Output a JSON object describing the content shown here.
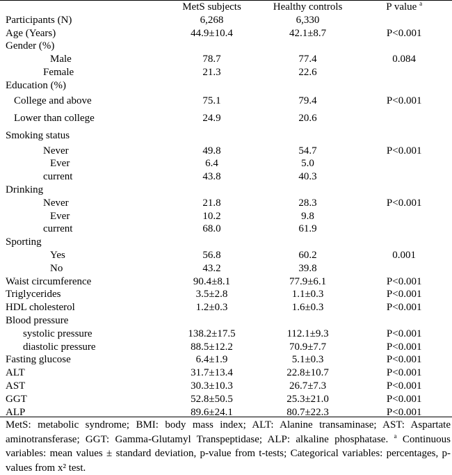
{
  "header": {
    "col1": "MetS subjects",
    "col2": "Healthy controls",
    "col3": "P value",
    "col3_sup": "a"
  },
  "rows": [
    {
      "label": "Participants (N)",
      "mets": "6,268",
      "ctrl": "6,330",
      "p": ""
    },
    {
      "label": "Age (Years)",
      "mets": "44.9±10.4",
      "ctrl": "42.1±8.7",
      "p": "P<0.001"
    },
    {
      "label": "Gender (%)",
      "mets": "",
      "ctrl": "",
      "p": ""
    },
    {
      "label": "Male",
      "mets": "78.7",
      "ctrl": "77.4",
      "p": "0.084"
    },
    {
      "label": "Female",
      "mets": "21.3",
      "ctrl": "22.6",
      "p": ""
    },
    {
      "label": "Education  (%)",
      "mets": "",
      "ctrl": "",
      "p": ""
    },
    {
      "label": "College and above",
      "mets": "75.1",
      "ctrl": "79.4",
      "p": "P<0.001"
    },
    {
      "label": "Lower than college",
      "mets": "24.9",
      "ctrl": "20.6",
      "p": ""
    },
    {
      "label": "Smoking status",
      "mets": "",
      "ctrl": "",
      "p": ""
    },
    {
      "label": "Never",
      "mets": "49.8",
      "ctrl": "54.7",
      "p": "P<0.001"
    },
    {
      "label": "Ever",
      "mets": "6.4",
      "ctrl": "5.0",
      "p": ""
    },
    {
      "label": "current",
      "mets": "43.8",
      "ctrl": "40.3",
      "p": ""
    },
    {
      "label": "Drinking",
      "mets": "",
      "ctrl": "",
      "p": ""
    },
    {
      "label": "Never",
      "mets": "21.8",
      "ctrl": "28.3",
      "p": "P<0.001"
    },
    {
      "label": "Ever",
      "mets": "10.2",
      "ctrl": "9.8",
      "p": ""
    },
    {
      "label": "current",
      "mets": "68.0",
      "ctrl": "61.9",
      "p": ""
    },
    {
      "label": "Sporting",
      "mets": "",
      "ctrl": "",
      "p": ""
    },
    {
      "label": "Yes",
      "mets": "56.8",
      "ctrl": "60.2",
      "p": "0.001"
    },
    {
      "label": "No",
      "mets": "43.2",
      "ctrl": "39.8",
      "p": ""
    },
    {
      "label": "Waist circumference",
      "mets": "90.4±8.1",
      "ctrl": "77.9±6.1",
      "p": "P<0.001"
    },
    {
      "label": "Triglycerides",
      "mets": "3.5±2.8",
      "ctrl": "1.1±0.3",
      "p": "P<0.001"
    },
    {
      "label": "HDL cholesterol",
      "mets": "1.2±0.3",
      "ctrl": "1.6±0.3",
      "p": "P<0.001"
    },
    {
      "label": "Blood pressure",
      "mets": "",
      "ctrl": "",
      "p": ""
    },
    {
      "label": "systolic pressure",
      "mets": "138.2±17.5",
      "ctrl": "112.1±9.3",
      "p": "P<0.001"
    },
    {
      "label": "diastolic pressure",
      "mets": "88.5±12.2",
      "ctrl": "70.9±7.7",
      "p": "P<0.001"
    },
    {
      "label": "Fasting glucose",
      "mets": "6.4±1.9",
      "ctrl": "5.1±0.3",
      "p": "P<0.001"
    },
    {
      "label": "ALT",
      "mets": "31.7±13.4",
      "ctrl": "22.8±10.7",
      "p": "P<0.001"
    },
    {
      "label": "AST",
      "mets": "30.3±10.3",
      "ctrl": "26.7±7.3",
      "p": "P<0.001"
    },
    {
      "label": "GGT",
      "mets": "52.8±50.5",
      "ctrl": "25.3±21.0",
      "p": "P<0.001"
    },
    {
      "label": "ALP",
      "mets": "89.6±24.1",
      "ctrl": "80.7±22.3",
      "p": "P<0.001"
    }
  ],
  "footnote": {
    "part1": "MetS: metabolic syndrome; BMI: body mass index; ALT: Alanine transaminase; AST: Aspartate aminotransferase; GGT: Gamma-Glutamyl Transpeptidase; ALP: alkaline phosphatase.",
    "sup": "a",
    "part2": "Continuous variables: mean values ± standard deviation, p-value from t-tests; Categorical variables: percentages, p-values from x² test."
  }
}
